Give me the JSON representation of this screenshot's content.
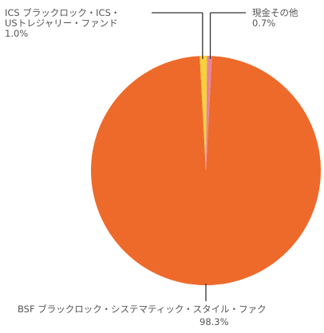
{
  "chart_data": {
    "type": "pie",
    "title": "",
    "slices": [
      {
        "name": "BSF ブラックロック・システマティック・スタイル・ファク",
        "value": 98.3,
        "value_label": "98.3%",
        "color": "#EE6A2B"
      },
      {
        "name": "ICS ブラックロック・ICS・USトレジャリー・ファンド",
        "name_lines": [
          "ICS ブラックロック・ICS・",
          "USトレジャリー・ファンド"
        ],
        "value": 1.0,
        "value_label": "1.0%",
        "color": "#F5D23A"
      },
      {
        "name": "現金その他",
        "value": 0.7,
        "value_label": "0.7%",
        "color": "#E8839A"
      }
    ],
    "legend": "none",
    "leader_line_color": "#333333"
  }
}
